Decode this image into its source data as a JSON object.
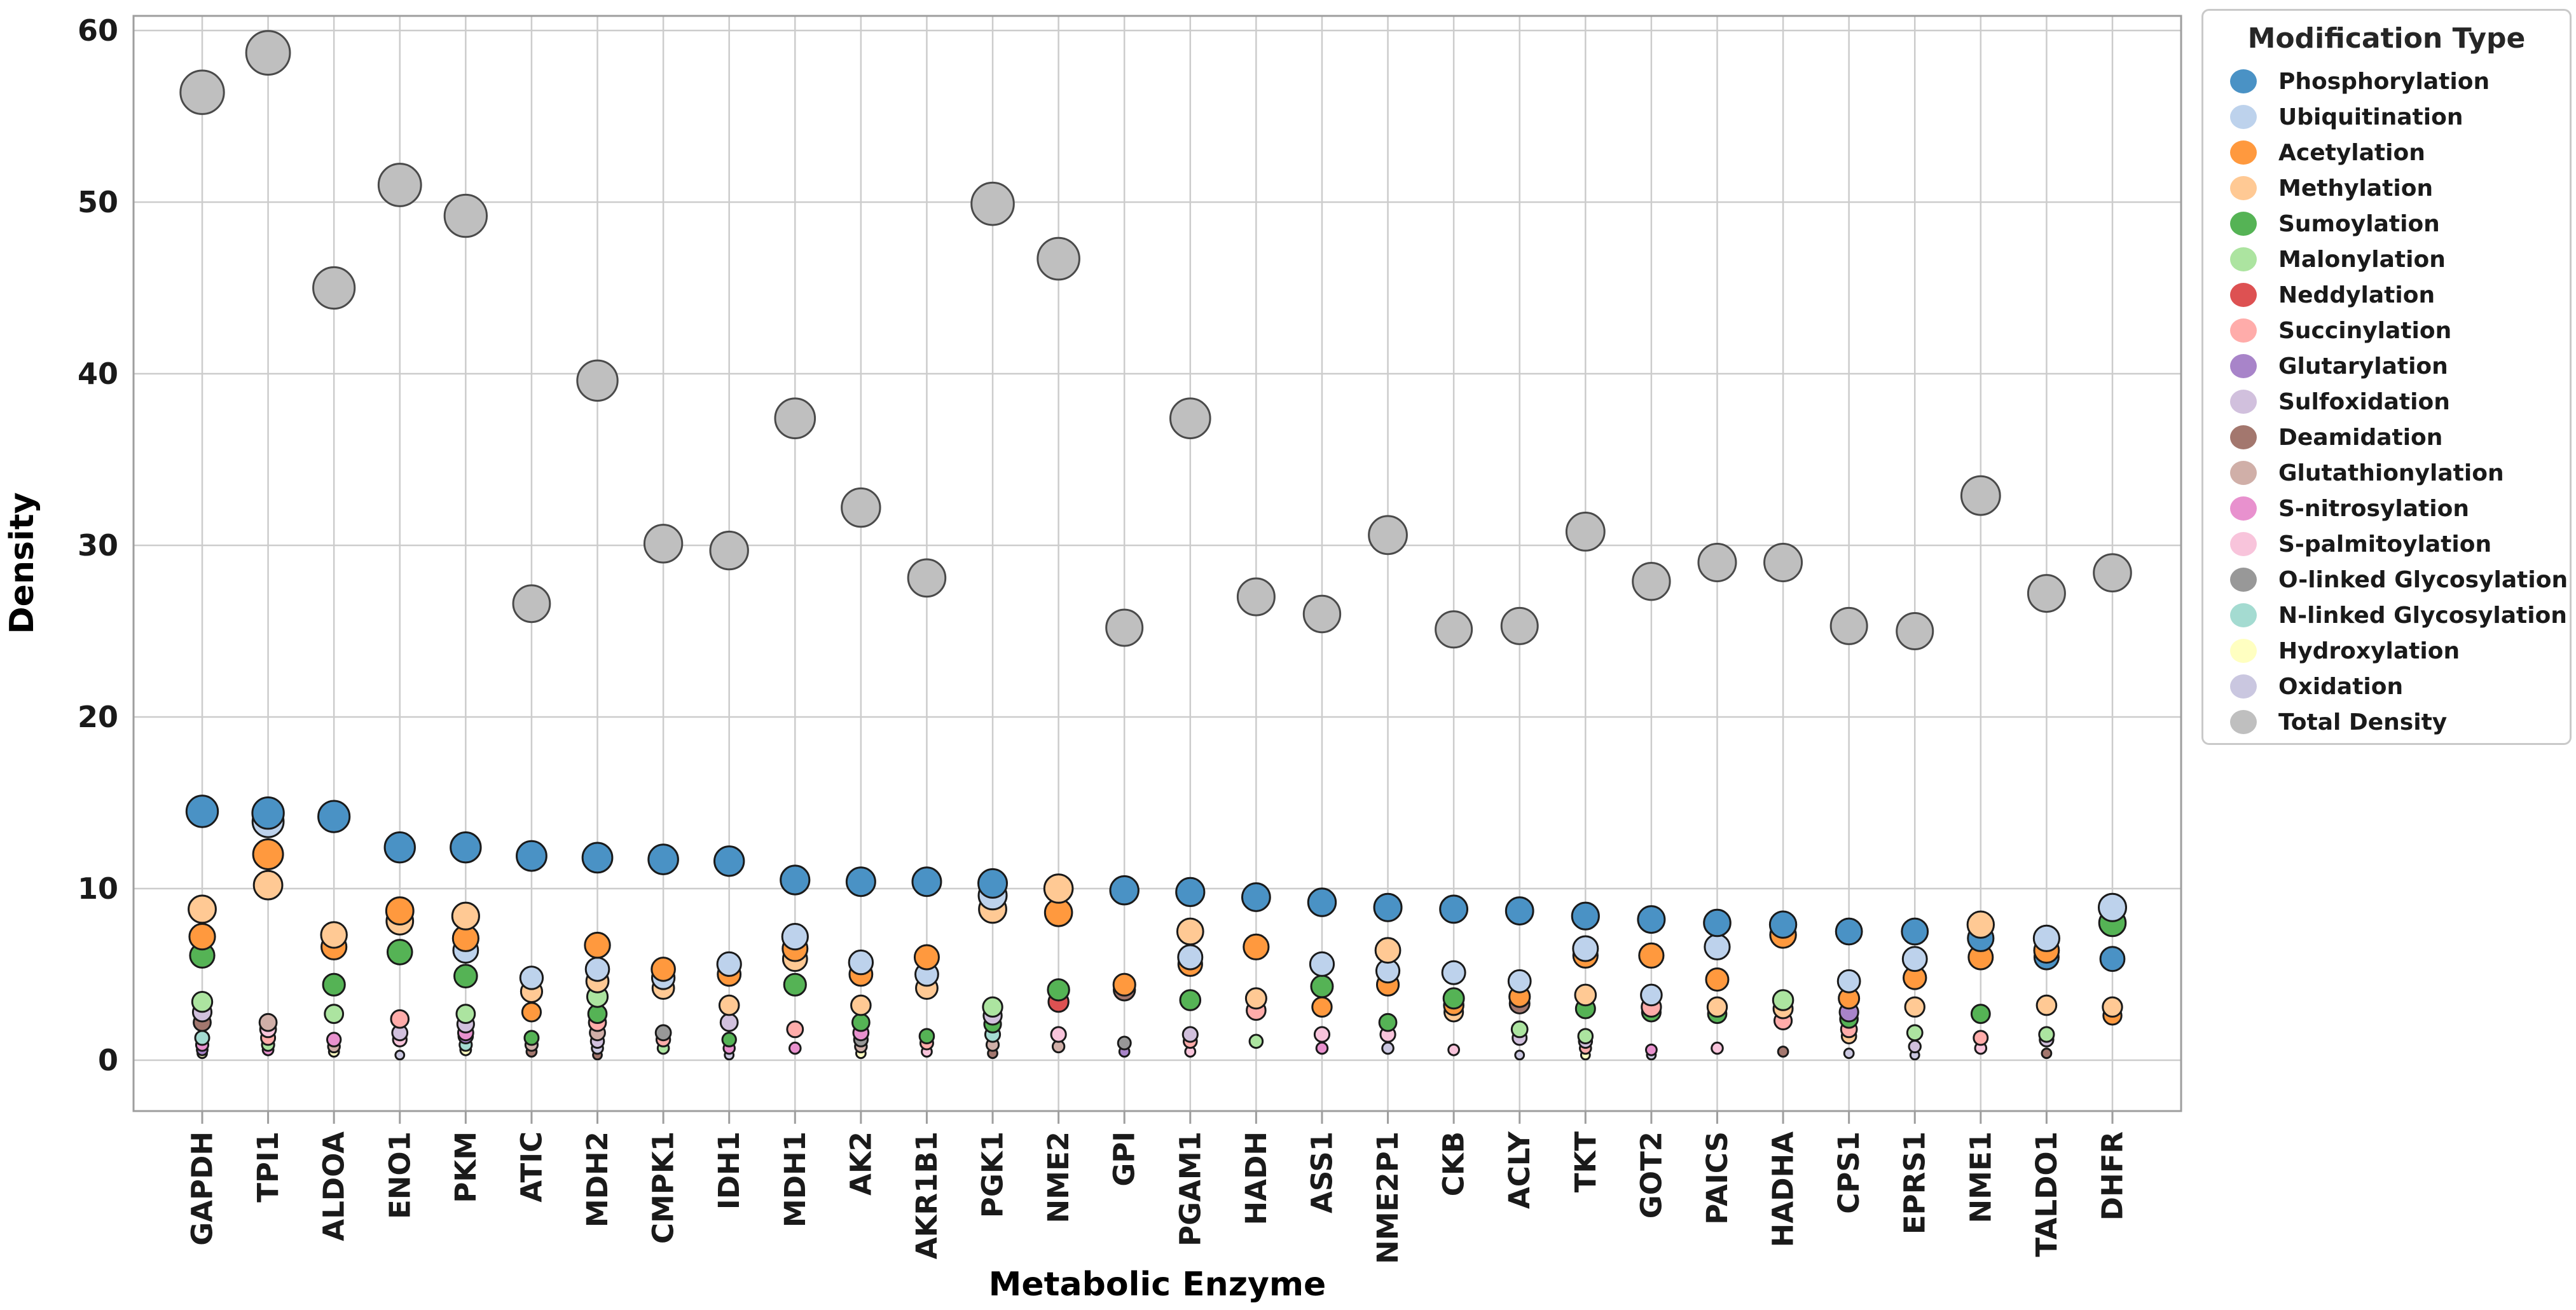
{
  "chart_data": {
    "type": "bubble",
    "title": "",
    "xlabel": "Metabolic Enzyme",
    "ylabel": "Density",
    "y_ticks": [
      0,
      10,
      20,
      30,
      40,
      50,
      60
    ],
    "ylim": [
      -3,
      62
    ],
    "grid": true,
    "legend_title": "Modification Type",
    "legend_position": "right-outside",
    "size_encoding": "bubble radius increases with density value",
    "style": {
      "background": "#ffffff",
      "grid_color": "#cccccc",
      "spine_color": "#9e9e9e",
      "tick_color": "#1a1a1a",
      "bubble_edge": "#1a1a1a",
      "total_edge": "#4a4a4a"
    },
    "enzymes": [
      "GAPDH",
      "TPI1",
      "ALDOA",
      "ENO1",
      "PKM",
      "ATIC",
      "MDH2",
      "CMPK1",
      "IDH1",
      "MDH1",
      "AK2",
      "AKR1B1",
      "PGK1",
      "NME2",
      "GPI",
      "PGAM1",
      "HADH",
      "ASS1",
      "NME2P1",
      "CKB",
      "ACLY",
      "TKT",
      "GOT2",
      "PAICS",
      "HADHA",
      "CPS1",
      "EPRS1",
      "NME1",
      "TALDO1",
      "DHFR"
    ],
    "series": [
      {
        "name": "Phosphorylation",
        "color": "#4A92C5",
        "values": [
          14.5,
          14.4,
          14.2,
          12.4,
          12.4,
          11.9,
          11.8,
          11.7,
          11.6,
          10.5,
          10.4,
          10.4,
          10.3,
          null,
          9.9,
          9.8,
          9.5,
          9.2,
          8.9,
          8.8,
          8.7,
          8.4,
          8.2,
          8.0,
          7.9,
          7.5,
          7.5,
          7.1,
          6.0,
          5.9
        ]
      },
      {
        "name": "Ubiquitination",
        "color": "#BDD2EC",
        "values": [
          null,
          13.9,
          null,
          null,
          6.4,
          4.8,
          5.3,
          4.8,
          5.6,
          7.2,
          5.7,
          5.0,
          9.6,
          null,
          null,
          6.0,
          null,
          5.6,
          5.2,
          5.1,
          4.6,
          6.5,
          3.8,
          6.6,
          null,
          4.6,
          5.9,
          null,
          7.1,
          8.9
        ]
      },
      {
        "name": "Acetylation",
        "color": "#FF993E",
        "values": [
          7.2,
          12.0,
          6.6,
          8.7,
          7.1,
          2.8,
          6.7,
          5.3,
          5.0,
          6.5,
          5.0,
          6.0,
          null,
          8.6,
          4.4,
          5.6,
          6.6,
          3.1,
          4.4,
          3.2,
          3.7,
          6.1,
          6.1,
          4.7,
          7.3,
          3.6,
          4.8,
          6.0,
          6.4,
          2.6
        ]
      },
      {
        "name": "Methylation",
        "color": "#FFC994",
        "values": [
          8.8,
          10.2,
          7.3,
          8.1,
          8.4,
          4.0,
          4.6,
          4.2,
          3.2,
          5.9,
          3.2,
          4.2,
          8.8,
          10.0,
          null,
          7.5,
          3.6,
          null,
          6.4,
          2.8,
          null,
          3.8,
          null,
          3.1,
          3.0,
          1.4,
          3.1,
          7.9,
          3.2,
          3.1
        ]
      },
      {
        "name": "Sumoylation",
        "color": "#55B355",
        "values": [
          6.1,
          null,
          4.4,
          6.3,
          4.9,
          1.3,
          2.7,
          null,
          1.2,
          4.4,
          2.2,
          1.4,
          2.1,
          4.1,
          null,
          3.5,
          null,
          4.3,
          2.2,
          3.6,
          null,
          3.0,
          2.8,
          2.7,
          null,
          2.4,
          null,
          2.7,
          null,
          8.0
        ]
      },
      {
        "name": "Malonylation",
        "color": "#ACE4A0",
        "values": [
          3.4,
          0.9,
          2.7,
          null,
          2.7,
          null,
          3.7,
          0.7,
          null,
          null,
          null,
          null,
          3.1,
          null,
          null,
          null,
          1.1,
          null,
          null,
          null,
          1.8,
          1.4,
          null,
          null,
          3.5,
          null,
          1.6,
          null,
          1.5,
          null
        ]
      },
      {
        "name": "Neddylation",
        "color": "#DD5152",
        "values": [
          null,
          null,
          null,
          null,
          null,
          null,
          null,
          null,
          null,
          null,
          null,
          null,
          null,
          3.4,
          null,
          null,
          null,
          null,
          null,
          null,
          null,
          null,
          null,
          null,
          null,
          null,
          null,
          null,
          null,
          null
        ]
      },
      {
        "name": "Succinylation",
        "color": "#FFACAA",
        "values": [
          null,
          1.3,
          null,
          2.4,
          null,
          null,
          2.2,
          1.2,
          null,
          1.8,
          null,
          1.0,
          null,
          null,
          null,
          1.1,
          2.9,
          null,
          null,
          null,
          null,
          0.7,
          3.1,
          null,
          2.3,
          1.8,
          null,
          1.3,
          null,
          null
        ]
      },
      {
        "name": "Glutarylation",
        "color": "#A884C9",
        "values": [
          0.6,
          null,
          null,
          null,
          1.4,
          null,
          null,
          null,
          null,
          null,
          null,
          null,
          null,
          null,
          0.5,
          null,
          null,
          null,
          null,
          null,
          null,
          null,
          null,
          null,
          null,
          2.8,
          null,
          null,
          null,
          null
        ]
      },
      {
        "name": "Sulfoxidation",
        "color": "#D1C0DD",
        "values": [
          2.8,
          null,
          null,
          1.6,
          2.1,
          null,
          1.1,
          null,
          2.2,
          null,
          null,
          null,
          2.6,
          null,
          null,
          1.5,
          null,
          null,
          null,
          null,
          1.3,
          1.1,
          null,
          null,
          null,
          null,
          0.8,
          null,
          1.2,
          null
        ]
      },
      {
        "name": "Deamidation",
        "color": "#A3776E",
        "values": [
          2.2,
          null,
          null,
          null,
          null,
          0.5,
          0.3,
          null,
          null,
          null,
          null,
          null,
          0.4,
          null,
          4.1,
          null,
          null,
          null,
          null,
          null,
          3.3,
          null,
          null,
          null,
          0.5,
          null,
          null,
          null,
          0.4,
          null
        ]
      },
      {
        "name": "Glutathionylation",
        "color": "#D0AFA8",
        "values": [
          null,
          2.2,
          0.8,
          null,
          null,
          0.9,
          1.6,
          null,
          null,
          null,
          0.8,
          null,
          0.9,
          0.8,
          null,
          null,
          null,
          null,
          null,
          null,
          null,
          null,
          null,
          null,
          null,
          null,
          null,
          null,
          null,
          null
        ]
      },
      {
        "name": "S-nitrosylation",
        "color": "#E891CE",
        "values": [
          0.9,
          0.6,
          1.2,
          null,
          1.6,
          null,
          null,
          null,
          0.7,
          0.7,
          1.6,
          null,
          null,
          null,
          null,
          null,
          null,
          0.7,
          null,
          null,
          null,
          null,
          0.6,
          null,
          null,
          null,
          null,
          null,
          null,
          null
        ]
      },
      {
        "name": "S-palmitoylation",
        "color": "#F8C4DB",
        "values": [
          null,
          1.8,
          null,
          1.2,
          null,
          null,
          null,
          null,
          null,
          null,
          null,
          0.5,
          null,
          1.5,
          null,
          0.5,
          null,
          1.5,
          1.5,
          0.6,
          null,
          null,
          null,
          0.7,
          null,
          null,
          null,
          0.7,
          null,
          null
        ]
      },
      {
        "name": "O-linked Glycosylation",
        "color": "#989898",
        "values": [
          null,
          null,
          null,
          null,
          null,
          null,
          null,
          1.6,
          null,
          null,
          1.2,
          null,
          null,
          null,
          1.0,
          null,
          null,
          null,
          null,
          null,
          null,
          null,
          null,
          null,
          null,
          null,
          null,
          null,
          null,
          null
        ]
      },
      {
        "name": "N-linked Glycosylation",
        "color": "#A4DBD1",
        "values": [
          1.3,
          null,
          null,
          null,
          0.9,
          null,
          null,
          null,
          null,
          null,
          null,
          null,
          1.5,
          null,
          null,
          null,
          null,
          null,
          null,
          null,
          null,
          null,
          null,
          null,
          null,
          null,
          null,
          null,
          null,
          null
        ]
      },
      {
        "name": "Hydroxylation",
        "color": "#FFFFC1",
        "values": [
          0.4,
          null,
          0.5,
          null,
          0.6,
          null,
          null,
          null,
          null,
          null,
          0.4,
          null,
          null,
          null,
          null,
          null,
          null,
          null,
          null,
          null,
          null,
          0.3,
          null,
          null,
          null,
          null,
          null,
          null,
          null,
          null
        ]
      },
      {
        "name": "Oxidation",
        "color": "#CAC7E0",
        "values": [
          null,
          null,
          null,
          0.3,
          null,
          null,
          0.7,
          null,
          0.3,
          null,
          null,
          null,
          null,
          null,
          null,
          null,
          null,
          null,
          0.7,
          null,
          0.3,
          null,
          0.3,
          null,
          null,
          0.4,
          0.3,
          null,
          null,
          null
        ]
      },
      {
        "name": "Total Density",
        "color": "#BFBFBF",
        "values": [
          56.4,
          58.7,
          45.0,
          51.0,
          49.2,
          26.6,
          39.6,
          30.1,
          29.7,
          37.4,
          32.2,
          28.1,
          49.9,
          46.7,
          25.2,
          37.4,
          27.0,
          26.0,
          30.6,
          25.1,
          25.3,
          30.8,
          27.9,
          29.0,
          29.0,
          25.3,
          25.0,
          32.9,
          27.2,
          28.4
        ]
      }
    ]
  }
}
